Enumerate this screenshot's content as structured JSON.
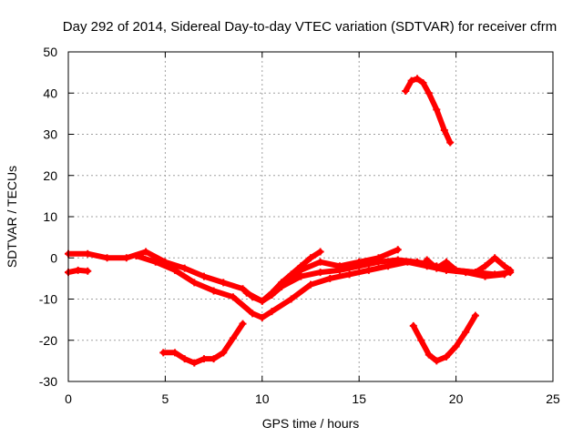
{
  "chart_data": {
    "type": "scatter",
    "title": "Day 292 of 2014, Sidereal Day-to-day VTEC variation (SDTVAR) for receiver cfrm",
    "xlabel": "GPS time / hours",
    "ylabel": "SDTVAR / TECUs",
    "xlim": [
      0,
      25
    ],
    "ylim": [
      -30,
      50
    ],
    "xticks": [
      0,
      5,
      10,
      15,
      20,
      25
    ],
    "yticks": [
      -30,
      -20,
      -10,
      0,
      10,
      20,
      30,
      40,
      50
    ],
    "grid": true,
    "marker": "plus",
    "color": "#ff0000",
    "series": [
      {
        "name": "trace-main-upper",
        "x": [
          0.0,
          1.0,
          2.0,
          3.0,
          4.0,
          5.0,
          6.0,
          7.0,
          8.0,
          9.0,
          9.5,
          10.0,
          10.5,
          11.0,
          12.0,
          13.0,
          14.0,
          15.0,
          16.0,
          17.0,
          18.0,
          19.0,
          20.0,
          21.0,
          22.0,
          22.8
        ],
        "y": [
          1.0,
          1.0,
          0.0,
          0.0,
          1.5,
          -1.0,
          -2.5,
          -4.5,
          -6.0,
          -7.5,
          -9.5,
          -10.5,
          -9.0,
          -7.0,
          -4.5,
          -3.5,
          -3.0,
          -2.0,
          -1.0,
          -0.5,
          -1.0,
          -2.0,
          -3.0,
          -3.5,
          -4.0,
          -3.5
        ]
      },
      {
        "name": "trace-main-lower",
        "x": [
          3.5,
          4.5,
          5.5,
          6.5,
          7.5,
          8.5,
          9.5,
          10.0,
          10.5,
          11.5,
          12.5,
          13.5,
          14.5,
          15.5,
          16.5,
          17.5,
          18.5,
          19.5,
          20.5,
          21.5,
          22.5
        ],
        "y": [
          0.5,
          -1.0,
          -3.0,
          -6.0,
          -8.0,
          -9.5,
          -13.5,
          -14.5,
          -13.0,
          -10.0,
          -6.5,
          -5.0,
          -4.0,
          -3.0,
          -2.0,
          -1.0,
          -2.0,
          -3.0,
          -3.5,
          -4.5,
          -4.0
        ]
      },
      {
        "name": "trace-branch-up",
        "x": [
          11.0,
          12.0,
          13.0,
          14.0,
          15.0,
          16.0,
          17.0
        ],
        "y": [
          -7.0,
          -3.0,
          -1.0,
          -2.0,
          -1.0,
          0.0,
          2.0
        ]
      },
      {
        "name": "trace-branch-rise",
        "x": [
          9.2,
          10.0,
          10.5,
          11.0,
          11.5,
          12.0,
          12.5,
          13.0
        ],
        "y": [
          -8.5,
          -10.5,
          -8.5,
          -6.0,
          -4.0,
          -2.0,
          0.0,
          1.5
        ]
      },
      {
        "name": "trace-evening-bumps",
        "x": [
          18.5,
          19.0,
          19.5,
          20.0,
          21.0,
          21.5,
          22.0,
          22.5,
          22.8
        ],
        "y": [
          -0.5,
          -2.5,
          -1.0,
          -3.0,
          -3.5,
          -2.0,
          0.0,
          -2.0,
          -3.0
        ]
      },
      {
        "name": "trace-early-short",
        "x": [
          0.0,
          0.5,
          1.0
        ],
        "y": [
          -3.5,
          -3.0,
          -3.2
        ]
      },
      {
        "name": "trace-dip",
        "x": [
          4.9,
          5.5,
          6.0,
          6.5,
          7.0,
          7.5,
          8.0,
          8.5,
          9.0
        ],
        "y": [
          -23.0,
          -23.0,
          -24.5,
          -25.5,
          -24.5,
          -24.5,
          -23.0,
          -19.5,
          -16.0
        ]
      },
      {
        "name": "trace-peak",
        "x": [
          17.4,
          17.7,
          18.0,
          18.3,
          18.6,
          19.0,
          19.4,
          19.7
        ],
        "y": [
          40.5,
          43.0,
          43.5,
          42.5,
          40.0,
          36.0,
          31.0,
          28.0
        ]
      },
      {
        "name": "trace-v",
        "x": [
          17.8,
          18.2,
          18.6,
          19.0,
          19.5,
          20.0,
          20.5,
          21.0
        ],
        "y": [
          -16.5,
          -20.0,
          -23.5,
          -25.0,
          -24.0,
          -21.5,
          -18.0,
          -14.0
        ]
      }
    ]
  }
}
